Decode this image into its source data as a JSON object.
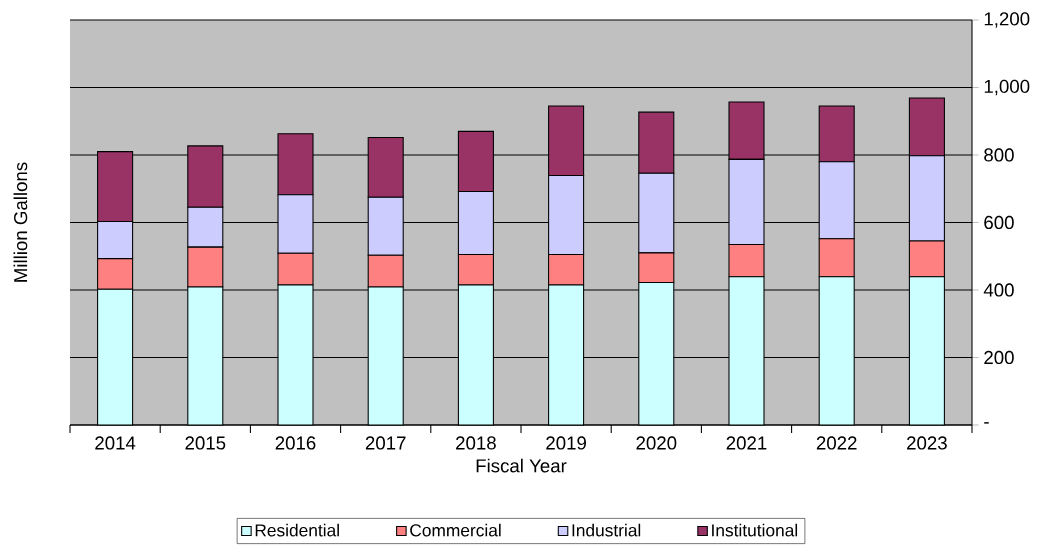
{
  "chart_data": {
    "type": "bar",
    "stacked": true,
    "xlabel": "Fiscal Year",
    "ylabel": "Million Gallons",
    "categories": [
      "2014",
      "2015",
      "2016",
      "2017",
      "2018",
      "2019",
      "2020",
      "2021",
      "2022",
      "2023"
    ],
    "series": [
      {
        "name": "Residential",
        "color": "#ccffff",
        "values": [
          402,
          409,
          415,
          409,
          415,
          415,
          422,
          439,
          439,
          439
        ]
      },
      {
        "name": "Commercial",
        "color": "#ff8080",
        "values": [
          91,
          118,
          94,
          94,
          90,
          90,
          88,
          96,
          113,
          106
        ]
      },
      {
        "name": "Industrial",
        "color": "#ccccff",
        "values": [
          110,
          118,
          173,
          172,
          187,
          234,
          236,
          252,
          228,
          253
        ]
      },
      {
        "name": "Institutional",
        "color": "#993366",
        "values": [
          207,
          182,
          181,
          177,
          178,
          206,
          181,
          170,
          165,
          171
        ]
      }
    ],
    "ylim": [
      0,
      1200
    ],
    "yticks": [
      {
        "value": 0,
        "label": "-"
      },
      {
        "value": 200,
        "label": "200"
      },
      {
        "value": 400,
        "label": "400"
      },
      {
        "value": 600,
        "label": "600"
      },
      {
        "value": 800,
        "label": "800"
      },
      {
        "value": 1000,
        "label": "1,000"
      },
      {
        "value": 1200,
        "label": "1,200"
      }
    ],
    "grid": "y",
    "legend": "bottom"
  }
}
